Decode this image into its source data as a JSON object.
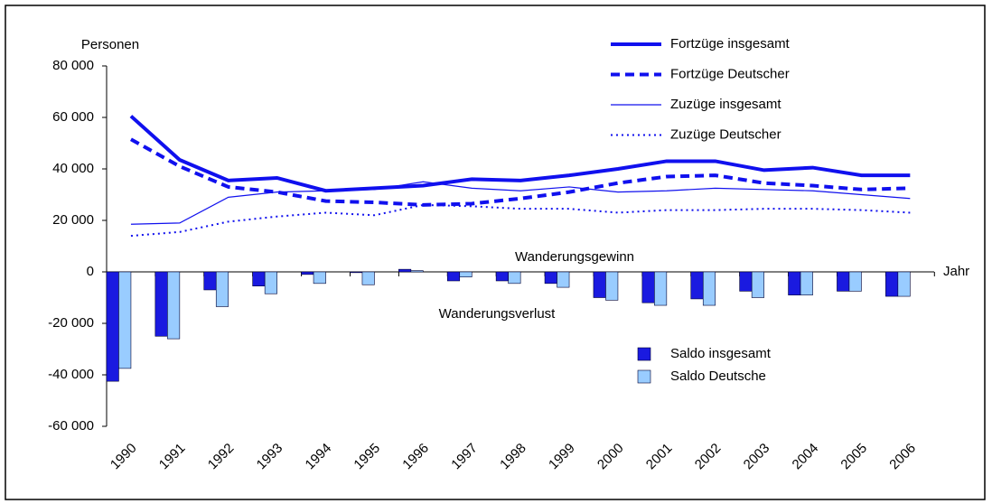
{
  "chart_data": {
    "type": "line",
    "y_label": "Personen",
    "x_label": "Jahr",
    "annotations": [
      "Wanderungsgewinn",
      "Wanderungsverlust"
    ],
    "categories": [
      "1990",
      "1991",
      "1992",
      "1993",
      "1994",
      "1995",
      "1996",
      "1997",
      "1998",
      "1999",
      "2000",
      "2001",
      "2002",
      "2003",
      "2004",
      "2005",
      "2006"
    ],
    "series": [
      {
        "name": "Fortzüge insgesamt",
        "type": "line",
        "color": "#1010ee",
        "linestyle": "solid",
        "linewidth": 4,
        "values": [
          60500,
          43500,
          35500,
          36500,
          31500,
          32500,
          33500,
          36000,
          35500,
          37500,
          40000,
          43000,
          43000,
          39500,
          40500,
          37500,
          37500
        ]
      },
      {
        "name": "Fortzüge Deutscher",
        "type": "line",
        "color": "#1010ee",
        "linestyle": "dashed",
        "linewidth": 4,
        "values": [
          51500,
          41000,
          33000,
          31000,
          27500,
          27000,
          26000,
          26500,
          28500,
          31000,
          34500,
          37000,
          37500,
          34500,
          33500,
          32000,
          32500
        ]
      },
      {
        "name": "Zuzüge insgesamt",
        "type": "line",
        "color": "#1010ee",
        "linestyle": "solid",
        "linewidth": 1.2,
        "values": [
          18500,
          19000,
          29000,
          31000,
          31500,
          32000,
          35000,
          32500,
          31500,
          33000,
          31000,
          31500,
          32500,
          32000,
          31500,
          30000,
          28500
        ]
      },
      {
        "name": "Zuzüge Deutscher",
        "type": "line",
        "color": "#1010ee",
        "linestyle": "dotted",
        "linewidth": 2,
        "values": [
          14000,
          15500,
          19500,
          21500,
          23000,
          22000,
          26000,
          25500,
          24500,
          24500,
          23000,
          24000,
          24000,
          24500,
          24500,
          24000,
          23000
        ]
      },
      {
        "name": "Saldo insgesamt",
        "type": "bar",
        "color": "#1a1ae0",
        "values": [
          -42500,
          -25000,
          -7000,
          -5500,
          -1000,
          -300,
          1000,
          -3500,
          -3500,
          -4500,
          -10000,
          -12000,
          -10500,
          -7500,
          -9000,
          -7500,
          -9500
        ]
      },
      {
        "name": "Saldo Deutsche",
        "type": "bar",
        "color": "#99ccff",
        "values": [
          -37500,
          -26000,
          -13500,
          -8500,
          -4500,
          -5000,
          500,
          -2000,
          -4500,
          -6000,
          -11000,
          -13000,
          -13000,
          -10000,
          -9000,
          -7500,
          -9500
        ]
      }
    ],
    "ylim": [
      -60000,
      80000
    ],
    "yticks": [
      {
        "value": -60000,
        "label": "-60 000"
      },
      {
        "value": -40000,
        "label": "-40 000"
      },
      {
        "value": -20000,
        "label": "-20 000"
      },
      0,
      {
        "value": 20000,
        "label": "20 000"
      },
      {
        "value": 40000,
        "label": "40 000"
      },
      {
        "value": 60000,
        "label": "60 000"
      },
      {
        "value": 80000,
        "label": "80 000"
      }
    ],
    "grid": false
  }
}
